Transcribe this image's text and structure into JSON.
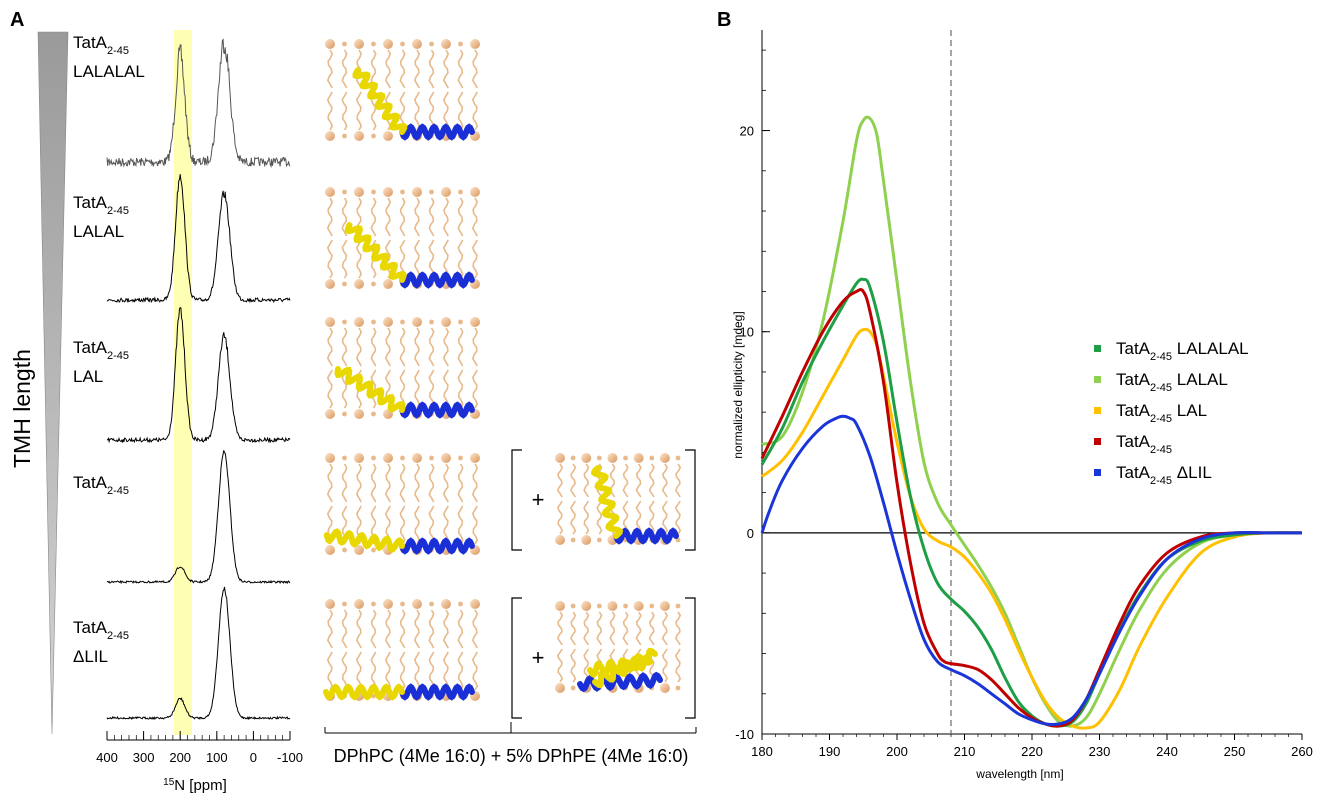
{
  "panels": {
    "a": {
      "letter": "A",
      "gradient_label": "TMH length",
      "samples": [
        {
          "line1": "TatA",
          "sub": "2-45",
          "line2": "LALALAL",
          "pos": 200,
          "tilt": 1.0
        },
        {
          "line1": "TatA",
          "sub": "2-45",
          "line2": "LALAL",
          "pos": 200,
          "tilt": 0.85
        },
        {
          "line1": "TatA",
          "sub": "2-45",
          "line2": "LAL",
          "pos": 200,
          "tilt": 0.6
        },
        {
          "line1": "TatA",
          "sub": "2-45",
          "line2": "",
          "pos": 200,
          "tilt": 0.15
        },
        {
          "line1": "TatA",
          "sub": "2-45",
          "line2": "ΔLIL",
          "pos": 200,
          "tilt": 0.0
        }
      ],
      "plus_sign": "+",
      "xaxis": {
        "ticks": [
          "400",
          "300",
          "200",
          "100",
          "0",
          "-100"
        ],
        "label_sup": "15",
        "label_text": "N [ppm]"
      },
      "membrane_label": "DPhPC (4Me 16:0) + 5% DPhPE  (4Me 16:0)",
      "colors": {
        "highlight": "#ffffb3",
        "tmh": "#e8d800",
        "amph": "#1a2fd6",
        "lipid": "#e8b98a"
      }
    },
    "b": {
      "letter": "B"
    }
  },
  "chart_data": {
    "type": "line",
    "xlabel": "wavelength [nm]",
    "ylabel": "normalized ellipticity [mdeg]",
    "xlim": [
      180,
      260
    ],
    "ylim": [
      -10,
      25
    ],
    "xticks": [
      "180",
      "190",
      "200",
      "210",
      "220",
      "230",
      "240",
      "250",
      "260"
    ],
    "yticks": [
      "-10",
      "0",
      "10",
      "20"
    ],
    "reference_line_x": 208,
    "legend": {
      "placement": "right"
    },
    "series": [
      {
        "name": "TatA",
        "sub": "2-45",
        "suffix": " LALALAL",
        "color": "#1e9e45",
        "x": [
          180,
          183,
          186,
          189,
          192,
          194,
          195,
          196,
          198,
          200,
          202,
          204,
          206,
          208,
          210,
          212,
          214,
          216,
          218,
          220,
          222,
          224,
          226,
          228,
          230,
          233,
          236,
          240,
          245,
          250,
          255,
          260
        ],
        "y": [
          3.4,
          5.2,
          7.5,
          9.5,
          11.3,
          12.4,
          12.6,
          12.2,
          9.5,
          5.5,
          1.8,
          -0.8,
          -2.5,
          -3.3,
          -3.9,
          -4.7,
          -5.8,
          -7.2,
          -8.4,
          -9.1,
          -9.5,
          -9.6,
          -9.4,
          -8.5,
          -7.0,
          -4.8,
          -3.0,
          -1.3,
          -0.4,
          -0.1,
          0.0,
          0.0
        ]
      },
      {
        "name": "TatA",
        "sub": "2-45",
        "suffix": " LALAL",
        "color": "#8fd14f",
        "x": [
          180,
          183,
          186,
          189,
          192,
          194,
          195,
          196,
          197,
          198,
          200,
          202,
          204,
          206,
          208,
          210,
          212,
          214,
          216,
          218,
          220,
          222,
          224,
          226,
          228,
          230,
          233,
          236,
          240,
          245,
          250,
          255,
          260
        ],
        "y": [
          4.4,
          4.8,
          7.0,
          10.5,
          15.5,
          19.5,
          20.5,
          20.6,
          19.8,
          17.5,
          12.5,
          7.5,
          3.5,
          1.5,
          0.4,
          -0.6,
          -1.6,
          -2.7,
          -4.0,
          -5.6,
          -7.2,
          -8.5,
          -9.4,
          -9.6,
          -9.2,
          -8.0,
          -5.8,
          -3.8,
          -1.8,
          -0.5,
          -0.1,
          0.0,
          0.0
        ]
      },
      {
        "name": "TatA",
        "sub": "2-45",
        "suffix": " LAL",
        "color": "#ffc000",
        "x": [
          180,
          183,
          186,
          189,
          192,
          194,
          195,
          196,
          197,
          198,
          200,
          202,
          204,
          206,
          208,
          210,
          212,
          214,
          216,
          218,
          220,
          222,
          224,
          226,
          228,
          230,
          233,
          236,
          240,
          245,
          250,
          255,
          260
        ],
        "y": [
          2.8,
          3.6,
          5.0,
          6.8,
          8.6,
          9.8,
          10.1,
          10.0,
          9.3,
          7.8,
          4.5,
          1.8,
          0.2,
          -0.4,
          -0.7,
          -1.2,
          -2.0,
          -3.0,
          -4.3,
          -5.8,
          -7.2,
          -8.4,
          -9.2,
          -9.6,
          -9.7,
          -9.4,
          -7.8,
          -5.6,
          -3.2,
          -1.0,
          -0.2,
          0.0,
          0.0
        ]
      },
      {
        "name": "TatA",
        "sub": "2-45",
        "suffix": "",
        "color": "#c00000",
        "x": [
          180,
          183,
          186,
          189,
          192,
          194,
          195,
          196,
          198,
          200,
          202,
          204,
          206,
          207,
          208,
          210,
          212,
          214,
          216,
          218,
          220,
          222,
          224,
          226,
          228,
          230,
          233,
          236,
          240,
          245,
          250,
          255,
          260
        ],
        "y": [
          3.7,
          5.8,
          8.0,
          10.0,
          11.5,
          12.0,
          12.0,
          11.0,
          7.5,
          2.5,
          -1.5,
          -4.5,
          -6.0,
          -6.4,
          -6.5,
          -6.6,
          -6.8,
          -7.3,
          -8.0,
          -8.7,
          -9.2,
          -9.5,
          -9.6,
          -9.3,
          -8.3,
          -6.8,
          -4.5,
          -2.6,
          -1.0,
          -0.2,
          0.0,
          0.0,
          0.0
        ]
      },
      {
        "name": "TatA",
        "sub": "2-45",
        "suffix": " ΔLIL",
        "color": "#1a35d8",
        "x": [
          180,
          181,
          183,
          186,
          189,
          191,
          192,
          193,
          194,
          196,
          198,
          200,
          202,
          204,
          206,
          208,
          210,
          212,
          214,
          216,
          218,
          220,
          222,
          224,
          226,
          228,
          230,
          233,
          236,
          240,
          245,
          250,
          255,
          260
        ],
        "y": [
          0.0,
          1.0,
          2.6,
          4.2,
          5.3,
          5.7,
          5.8,
          5.7,
          5.4,
          3.8,
          1.5,
          -1.0,
          -3.3,
          -5.3,
          -6.4,
          -6.8,
          -7.1,
          -7.5,
          -8.0,
          -8.5,
          -9.0,
          -9.3,
          -9.5,
          -9.5,
          -9.2,
          -8.3,
          -7.0,
          -4.9,
          -3.1,
          -1.3,
          -0.3,
          0.0,
          0.0,
          0.0
        ]
      }
    ]
  }
}
